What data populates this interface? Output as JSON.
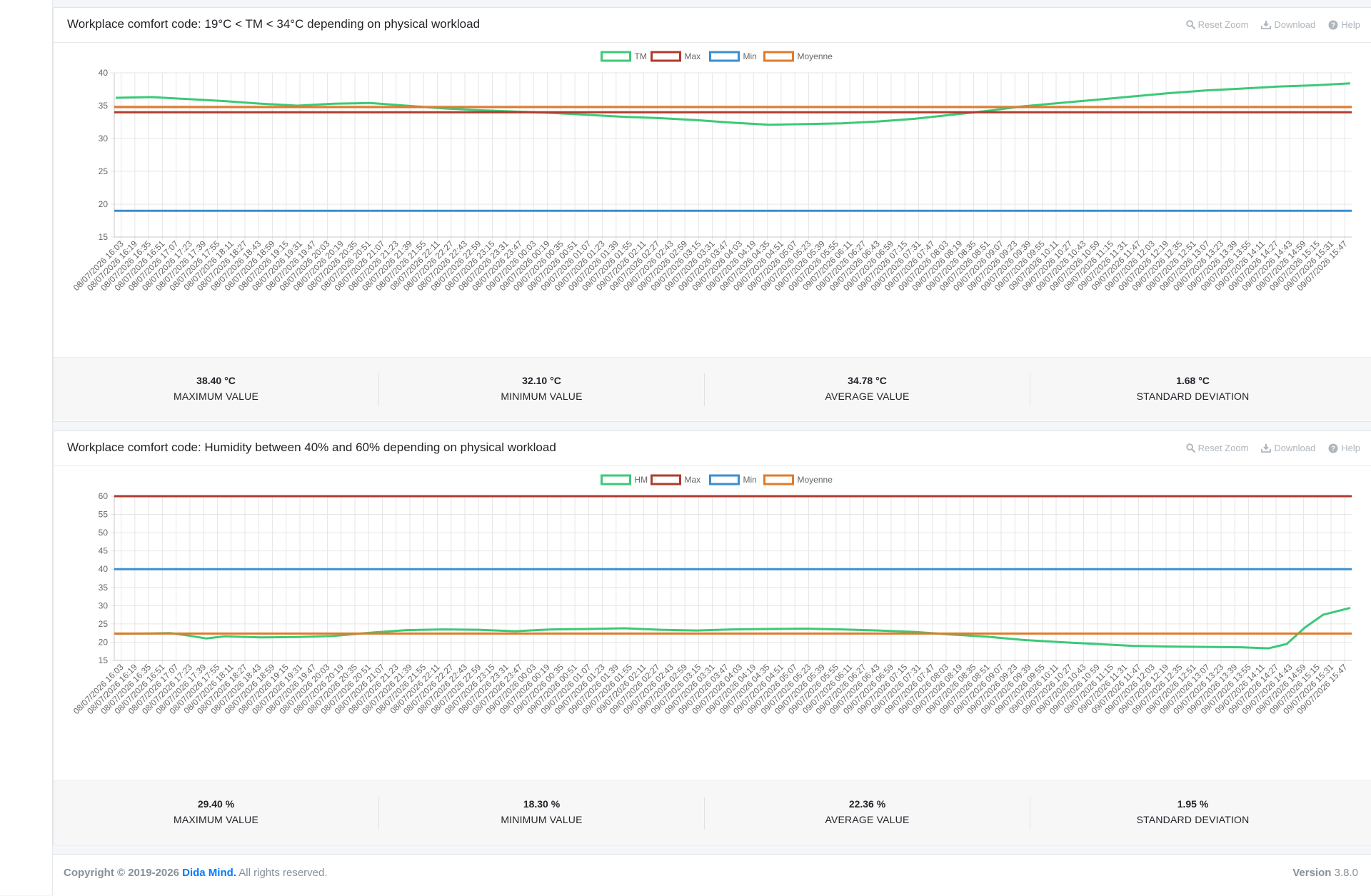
{
  "charts": [
    {
      "title": "Workplace comfort code: 19°C < TM < 34°C depending on physical workload",
      "tools": {
        "reset_zoom": "Reset Zoom",
        "download": "Download",
        "help": "Help"
      },
      "stats": [
        {
          "value": "38.40 °C",
          "label": "MAXIMUM VALUE"
        },
        {
          "value": "32.10 °C",
          "label": "MINIMUM VALUE"
        },
        {
          "value": "34.78 °C",
          "label": "AVERAGE VALUE"
        },
        {
          "value": "1.68 °C",
          "label": "STANDARD DEVIATION"
        }
      ]
    },
    {
      "title": "Workplace comfort code: Humidity between 40% and 60% depending on physical workload",
      "tools": {
        "reset_zoom": "Reset Zoom",
        "download": "Download",
        "help": "Help"
      },
      "stats": [
        {
          "value": "29.40 %",
          "label": "MAXIMUM VALUE"
        },
        {
          "value": "18.30 %",
          "label": "MINIMUM VALUE"
        },
        {
          "value": "22.36 %",
          "label": "AVERAGE VALUE"
        },
        {
          "value": "1.95 %",
          "label": "STANDARD DEVIATION"
        }
      ]
    }
  ],
  "footer": {
    "copyright_prefix": "Copyright © 2019-2026",
    "brand": "Dida Mind.",
    "rights": "All rights reserved.",
    "version_label": "Version",
    "version_value": "3.8.0"
  },
  "colors": {
    "tm": "#3cc977",
    "max": "#b03a2e",
    "min": "#3a8fd1",
    "avg": "#e07b2a",
    "brand": "#007bff"
  },
  "chart_data": [
    {
      "type": "line",
      "title": "Workplace comfort code: 19°C < TM < 34°C depending on physical workload",
      "ylim": [
        15,
        40
      ],
      "yticks": [
        15,
        20,
        25,
        30,
        35,
        40
      ],
      "grid": true,
      "legend_position": "top-center",
      "x_start": "08/07/2026 16:03",
      "x_step_minutes": 16,
      "x_count": 90,
      "series": [
        {
          "name": "TM",
          "color": "#3cc977",
          "points": [
            [
              0,
              36.2
            ],
            [
              4,
              36.3
            ],
            [
              8,
              36.0
            ],
            [
              12,
              35.7
            ],
            [
              16,
              35.3
            ],
            [
              20,
              35.0
            ],
            [
              24,
              35.3
            ],
            [
              28,
              35.4
            ],
            [
              32,
              35.0
            ],
            [
              36,
              34.6
            ],
            [
              40,
              34.3
            ],
            [
              44,
              34.1
            ],
            [
              48,
              33.9
            ],
            [
              52,
              33.6
            ],
            [
              56,
              33.3
            ],
            [
              60,
              33.1
            ],
            [
              64,
              32.8
            ],
            [
              68,
              32.4
            ],
            [
              72,
              32.1
            ],
            [
              76,
              32.2
            ],
            [
              80,
              32.3
            ],
            [
              84,
              32.6
            ],
            [
              88,
              33.0
            ],
            [
              92,
              33.6
            ],
            [
              96,
              34.2
            ],
            [
              100,
              34.9
            ],
            [
              104,
              35.4
            ],
            [
              108,
              35.9
            ],
            [
              112,
              36.4
            ],
            [
              116,
              36.9
            ],
            [
              120,
              37.3
            ],
            [
              124,
              37.6
            ],
            [
              128,
              37.9
            ],
            [
              132,
              38.1
            ],
            [
              136,
              38.4
            ]
          ]
        },
        {
          "name": "Max",
          "color": "#b03a2e",
          "value": 34
        },
        {
          "name": "Min",
          "color": "#3a8fd1",
          "value": 19
        },
        {
          "name": "Moyenne",
          "color": "#e07b2a",
          "value": 34.78
        }
      ]
    },
    {
      "type": "line",
      "title": "Workplace comfort code: Humidity between 40% and 60% depending on physical workload",
      "ylim": [
        15,
        60
      ],
      "yticks": [
        15,
        20,
        25,
        30,
        35,
        40,
        45,
        50,
        55,
        60
      ],
      "grid": true,
      "legend_position": "top-center",
      "x_start": "08/07/2026 16:03",
      "x_step_minutes": 16,
      "x_count": 90,
      "series": [
        {
          "name": "HM",
          "color": "#3cc977",
          "points": [
            [
              0,
              22.3
            ],
            [
              4,
              22.4
            ],
            [
              6,
              22.5
            ],
            [
              8,
              21.8
            ],
            [
              10,
              21.0
            ],
            [
              12,
              21.6
            ],
            [
              16,
              21.3
            ],
            [
              20,
              21.4
            ],
            [
              24,
              21.7
            ],
            [
              28,
              22.6
            ],
            [
              32,
              23.3
            ],
            [
              36,
              23.5
            ],
            [
              40,
              23.4
            ],
            [
              44,
              23.0
            ],
            [
              48,
              23.5
            ],
            [
              52,
              23.6
            ],
            [
              56,
              23.8
            ],
            [
              60,
              23.4
            ],
            [
              64,
              23.2
            ],
            [
              68,
              23.5
            ],
            [
              72,
              23.6
            ],
            [
              76,
              23.7
            ],
            [
              80,
              23.5
            ],
            [
              84,
              23.2
            ],
            [
              88,
              22.8
            ],
            [
              92,
              22.1
            ],
            [
              96,
              21.5
            ],
            [
              100,
              20.6
            ],
            [
              104,
              20.0
            ],
            [
              108,
              19.5
            ],
            [
              112,
              19.0
            ],
            [
              116,
              18.8
            ],
            [
              120,
              18.7
            ],
            [
              124,
              18.6
            ],
            [
              127,
              18.3
            ],
            [
              129,
              19.5
            ],
            [
              131,
              24.0
            ],
            [
              133,
              27.5
            ],
            [
              136,
              29.4
            ]
          ]
        },
        {
          "name": "Max",
          "color": "#b03a2e",
          "value": 60
        },
        {
          "name": "Min",
          "color": "#3a8fd1",
          "value": 40
        },
        {
          "name": "Moyenne",
          "color": "#e07b2a",
          "value": 22.36
        }
      ]
    }
  ]
}
